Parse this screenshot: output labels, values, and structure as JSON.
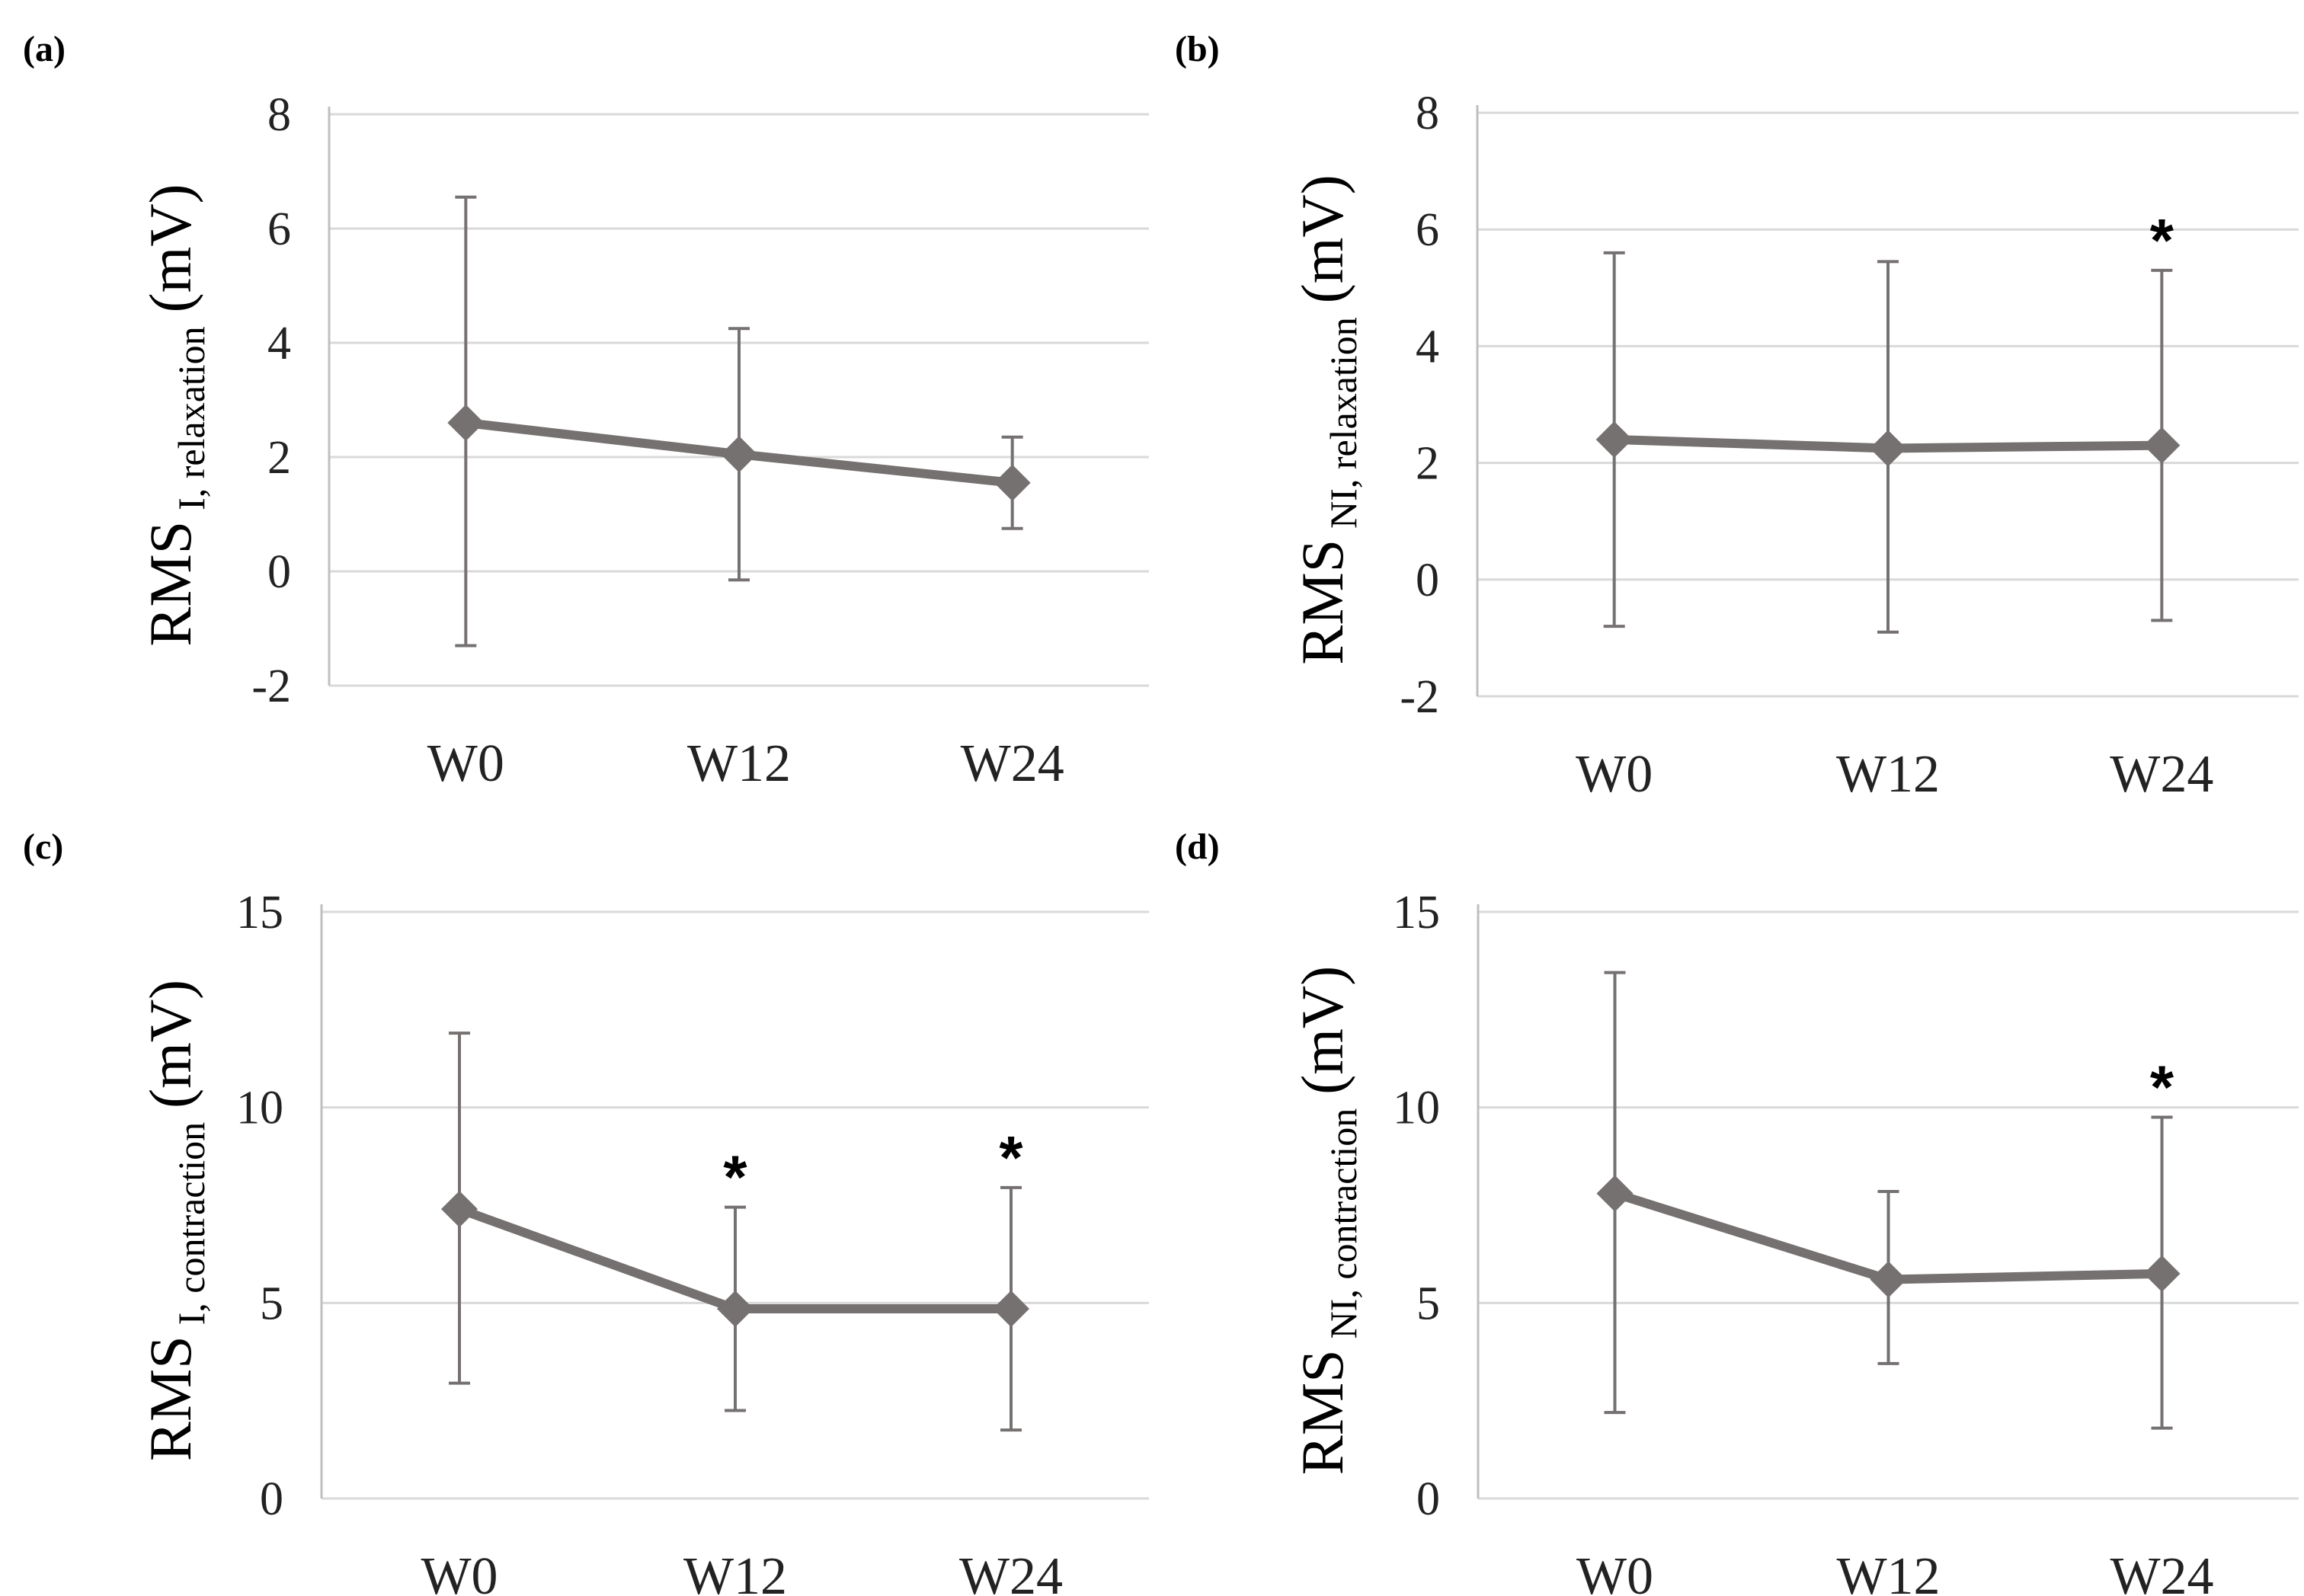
{
  "colors": {
    "series": "#767171",
    "grid": "#d9d9d9",
    "axis": "#bfbfbf"
  },
  "chart_data": [
    {
      "type": "line",
      "panel_label": "(a)",
      "ylabel": {
        "main": "RMS",
        "sub": "I, relaxation",
        "unit": "(mV)"
      },
      "categories": [
        "W0",
        "W12",
        "W24"
      ],
      "values": [
        2.6,
        2.05,
        1.55
      ],
      "error_upper": [
        6.55,
        4.25,
        2.35
      ],
      "error_lower": [
        -1.3,
        -0.15,
        0.75
      ],
      "significant": [
        false,
        false,
        false
      ],
      "significance_marker": "*",
      "ylim": [
        -2,
        8
      ],
      "yticks": [
        "-2",
        "0",
        "2",
        "4",
        "6",
        "8"
      ],
      "grid": true
    },
    {
      "type": "line",
      "panel_label": "(b)",
      "ylabel": {
        "main": "RMS",
        "sub": "NI, relaxation",
        "unit": "(mV)"
      },
      "categories": [
        "W0",
        "W12",
        "W24"
      ],
      "values": [
        2.4,
        2.25,
        2.3
      ],
      "error_upper": [
        5.6,
        5.45,
        5.3
      ],
      "error_lower": [
        -0.8,
        -0.9,
        -0.7
      ],
      "significant": [
        false,
        false,
        true
      ],
      "significance_marker": "*",
      "ylim": [
        -2,
        8
      ],
      "yticks": [
        "-2",
        "0",
        "2",
        "4",
        "6",
        "8"
      ],
      "grid": true
    },
    {
      "type": "line",
      "panel_label": "(c)",
      "ylabel": {
        "main": "RMS",
        "sub": "I, contraction",
        "unit": "(mV)"
      },
      "categories": [
        "W0",
        "W12",
        "W24"
      ],
      "values": [
        7.4,
        4.85,
        4.85
      ],
      "error_upper": [
        11.9,
        7.45,
        7.95
      ],
      "error_lower": [
        2.95,
        2.25,
        1.75
      ],
      "significant": [
        false,
        true,
        true
      ],
      "significance_marker": "*",
      "ylim": [
        0,
        15
      ],
      "yticks": [
        "0",
        "5",
        "10",
        "15"
      ],
      "grid": true
    },
    {
      "type": "line",
      "panel_label": "(d)",
      "ylabel": {
        "main": "RMS",
        "sub": "NI, contraction",
        "unit": "(mV)"
      },
      "categories": [
        "W0",
        "W12",
        "W24"
      ],
      "values": [
        7.8,
        5.6,
        5.75
      ],
      "error_upper": [
        13.45,
        7.85,
        9.75
      ],
      "error_lower": [
        2.2,
        3.45,
        1.8
      ],
      "significant": [
        false,
        false,
        true
      ],
      "significance_marker": "*",
      "ylim": [
        0,
        15
      ],
      "yticks": [
        "0",
        "5",
        "10",
        "15"
      ],
      "grid": true
    }
  ]
}
